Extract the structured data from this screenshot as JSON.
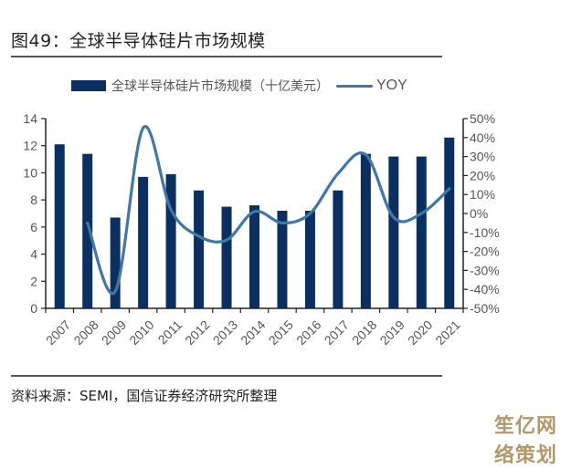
{
  "figure": {
    "title": "图49：全球半导体硅片市场规模",
    "source": "资料来源：SEMI，国信证券经济研究所整理",
    "watermark": "笙亿网络策划"
  },
  "colors": {
    "bar": "#0b2f5e",
    "line": "#3f77a6",
    "axis": "#222222",
    "tick_text": "#555555"
  },
  "chart_data": {
    "type": "bar+line",
    "title": "全球半导体硅片市场规模",
    "categories": [
      "2007",
      "2008",
      "2009",
      "2010",
      "2011",
      "2012",
      "2013",
      "2014",
      "2015",
      "2016",
      "2017",
      "2018",
      "2019",
      "2020",
      "2021"
    ],
    "series": [
      {
        "name": "全球半导体硅片市场规模（十亿美元）",
        "type": "bar",
        "axis": "left",
        "values": [
          12.1,
          11.4,
          6.7,
          9.7,
          9.9,
          8.7,
          7.5,
          7.6,
          7.2,
          7.2,
          8.7,
          11.4,
          11.2,
          11.2,
          12.6
        ]
      },
      {
        "name": "YOY",
        "type": "line",
        "smooth": true,
        "axis": "right",
        "values": [
          null,
          -5,
          -41,
          45,
          2,
          -12,
          -14,
          1,
          -5,
          0,
          21,
          31,
          -2,
          0,
          13
        ]
      }
    ],
    "left_axis": {
      "min": 0,
      "max": 14,
      "step": 2,
      "ticks": [
        "0",
        "2",
        "4",
        "6",
        "8",
        "10",
        "12",
        "14"
      ]
    },
    "right_axis": {
      "min": -50,
      "max": 50,
      "step": 10,
      "ticks": [
        "-50%",
        "-40%",
        "-30%",
        "-20%",
        "-10%",
        "0%",
        "10%",
        "20%",
        "30%",
        "40%",
        "50%"
      ]
    },
    "xlabel": "",
    "ylabel": "",
    "grid": false,
    "legend": {
      "position": "top",
      "entries": [
        "全球半导体硅片市场规模（十亿美元）",
        "YOY"
      ]
    }
  }
}
